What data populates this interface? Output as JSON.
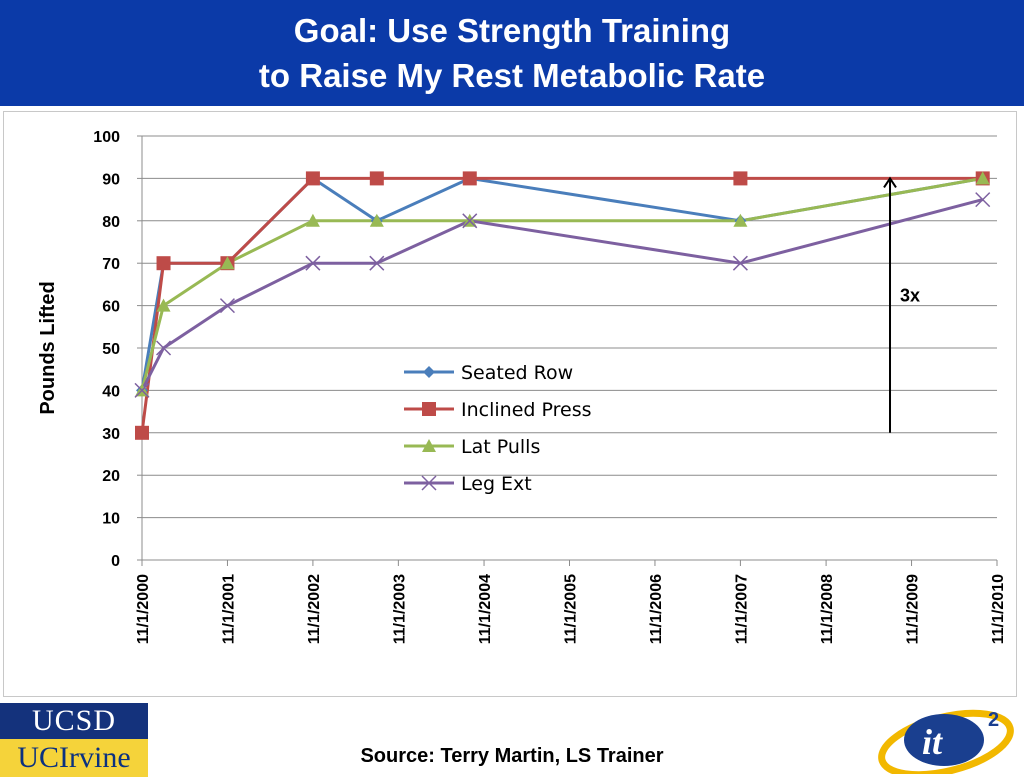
{
  "header": {
    "title_line_1": "Goal: Use Strength Training",
    "title_line_2": "to Raise My Rest Metabolic Rate"
  },
  "footer": {
    "source": "Source: Terry Martin, LS Trainer",
    "logo_ucsd": "UCSD",
    "logo_uci": "UCIrvine",
    "logo_it2": "it2"
  },
  "colors": {
    "banner": "#0b3aa8",
    "seated_row": "#4a7ebb",
    "inclined_press": "#be4b48",
    "lat_pulls": "#98b954",
    "leg_ext": "#7d60a0"
  },
  "chart_data": {
    "type": "line",
    "ylabel": "Pounds Lifted",
    "xlabel": "",
    "ylim": [
      0,
      100
    ],
    "yticks": [
      0,
      10,
      20,
      30,
      40,
      50,
      60,
      70,
      80,
      90,
      100
    ],
    "xlim": [
      "11/1/2000",
      "11/1/2010"
    ],
    "xticks": [
      "11/1/2000",
      "11/1/2001",
      "11/1/2002",
      "11/1/2003",
      "11/1/2004",
      "11/1/2005",
      "11/1/2006",
      "11/1/2007",
      "11/1/2008",
      "11/1/2009",
      "11/1/2010"
    ],
    "grid": "horizontal",
    "legend": "center",
    "x": [
      "11/1/2000",
      "2/1/2001",
      "11/1/2001",
      "11/1/2002",
      "8/1/2003",
      "9/1/2004",
      "11/1/2007",
      "9/1/2010"
    ],
    "series": [
      {
        "name": "Seated Row",
        "marker": "diamond",
        "values": [
          40,
          70,
          70,
          90,
          80,
          90,
          80,
          90
        ]
      },
      {
        "name": "Inclined Press",
        "marker": "square",
        "values": [
          30,
          70,
          70,
          90,
          90,
          90,
          90,
          90
        ]
      },
      {
        "name": "Lat Pulls",
        "marker": "triangle",
        "values": [
          40,
          60,
          70,
          80,
          80,
          80,
          80,
          90
        ]
      },
      {
        "name": "Leg Ext",
        "marker": "x",
        "values": [
          40,
          50,
          60,
          70,
          70,
          80,
          70,
          85
        ]
      }
    ],
    "annotation": {
      "text": "3x",
      "x": "8/1/2009",
      "y_from": 30,
      "y_to": 90
    }
  }
}
